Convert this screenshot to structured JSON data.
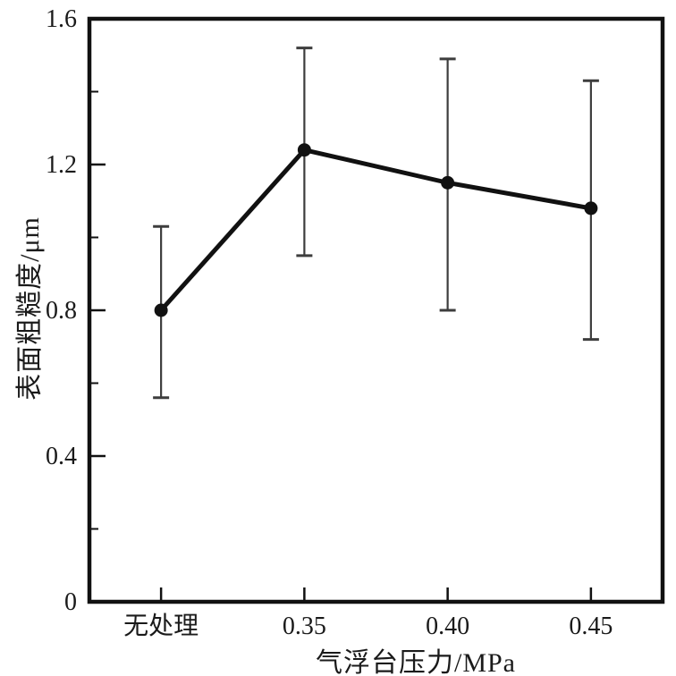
{
  "figure": {
    "background": "#ffffff"
  },
  "chart_data": {
    "type": "line",
    "title": "",
    "xlabel": "气浮台压力/MPa",
    "ylabel": "表面粗糙度/μm",
    "categories": [
      "无处理",
      "0.35",
      "0.40",
      "0.45"
    ],
    "series": [
      {
        "name": "表面粗糙度",
        "values": [
          0.8,
          1.24,
          1.15,
          1.08
        ],
        "error_upper": [
          1.03,
          1.52,
          1.49,
          1.43
        ],
        "error_lower": [
          0.56,
          0.95,
          0.8,
          0.72
        ]
      }
    ],
    "ylim": [
      0,
      1.6
    ],
    "y_major_ticks": [
      0,
      0.4,
      0.8,
      1.2,
      1.6
    ],
    "y_tick_labels": [
      "0",
      "0.4",
      "0.8",
      "1.2",
      "1.6"
    ],
    "y_minor_tick_start": 0.2,
    "y_minor_tick_step": 0.4,
    "grid": false,
    "legend": "none",
    "marker": "filled-circle",
    "colors": {
      "line": "#111111",
      "marker": "#111111",
      "error_bar": "#3d3d3d",
      "axis": "#111111",
      "text": "#1a1a1a"
    }
  }
}
